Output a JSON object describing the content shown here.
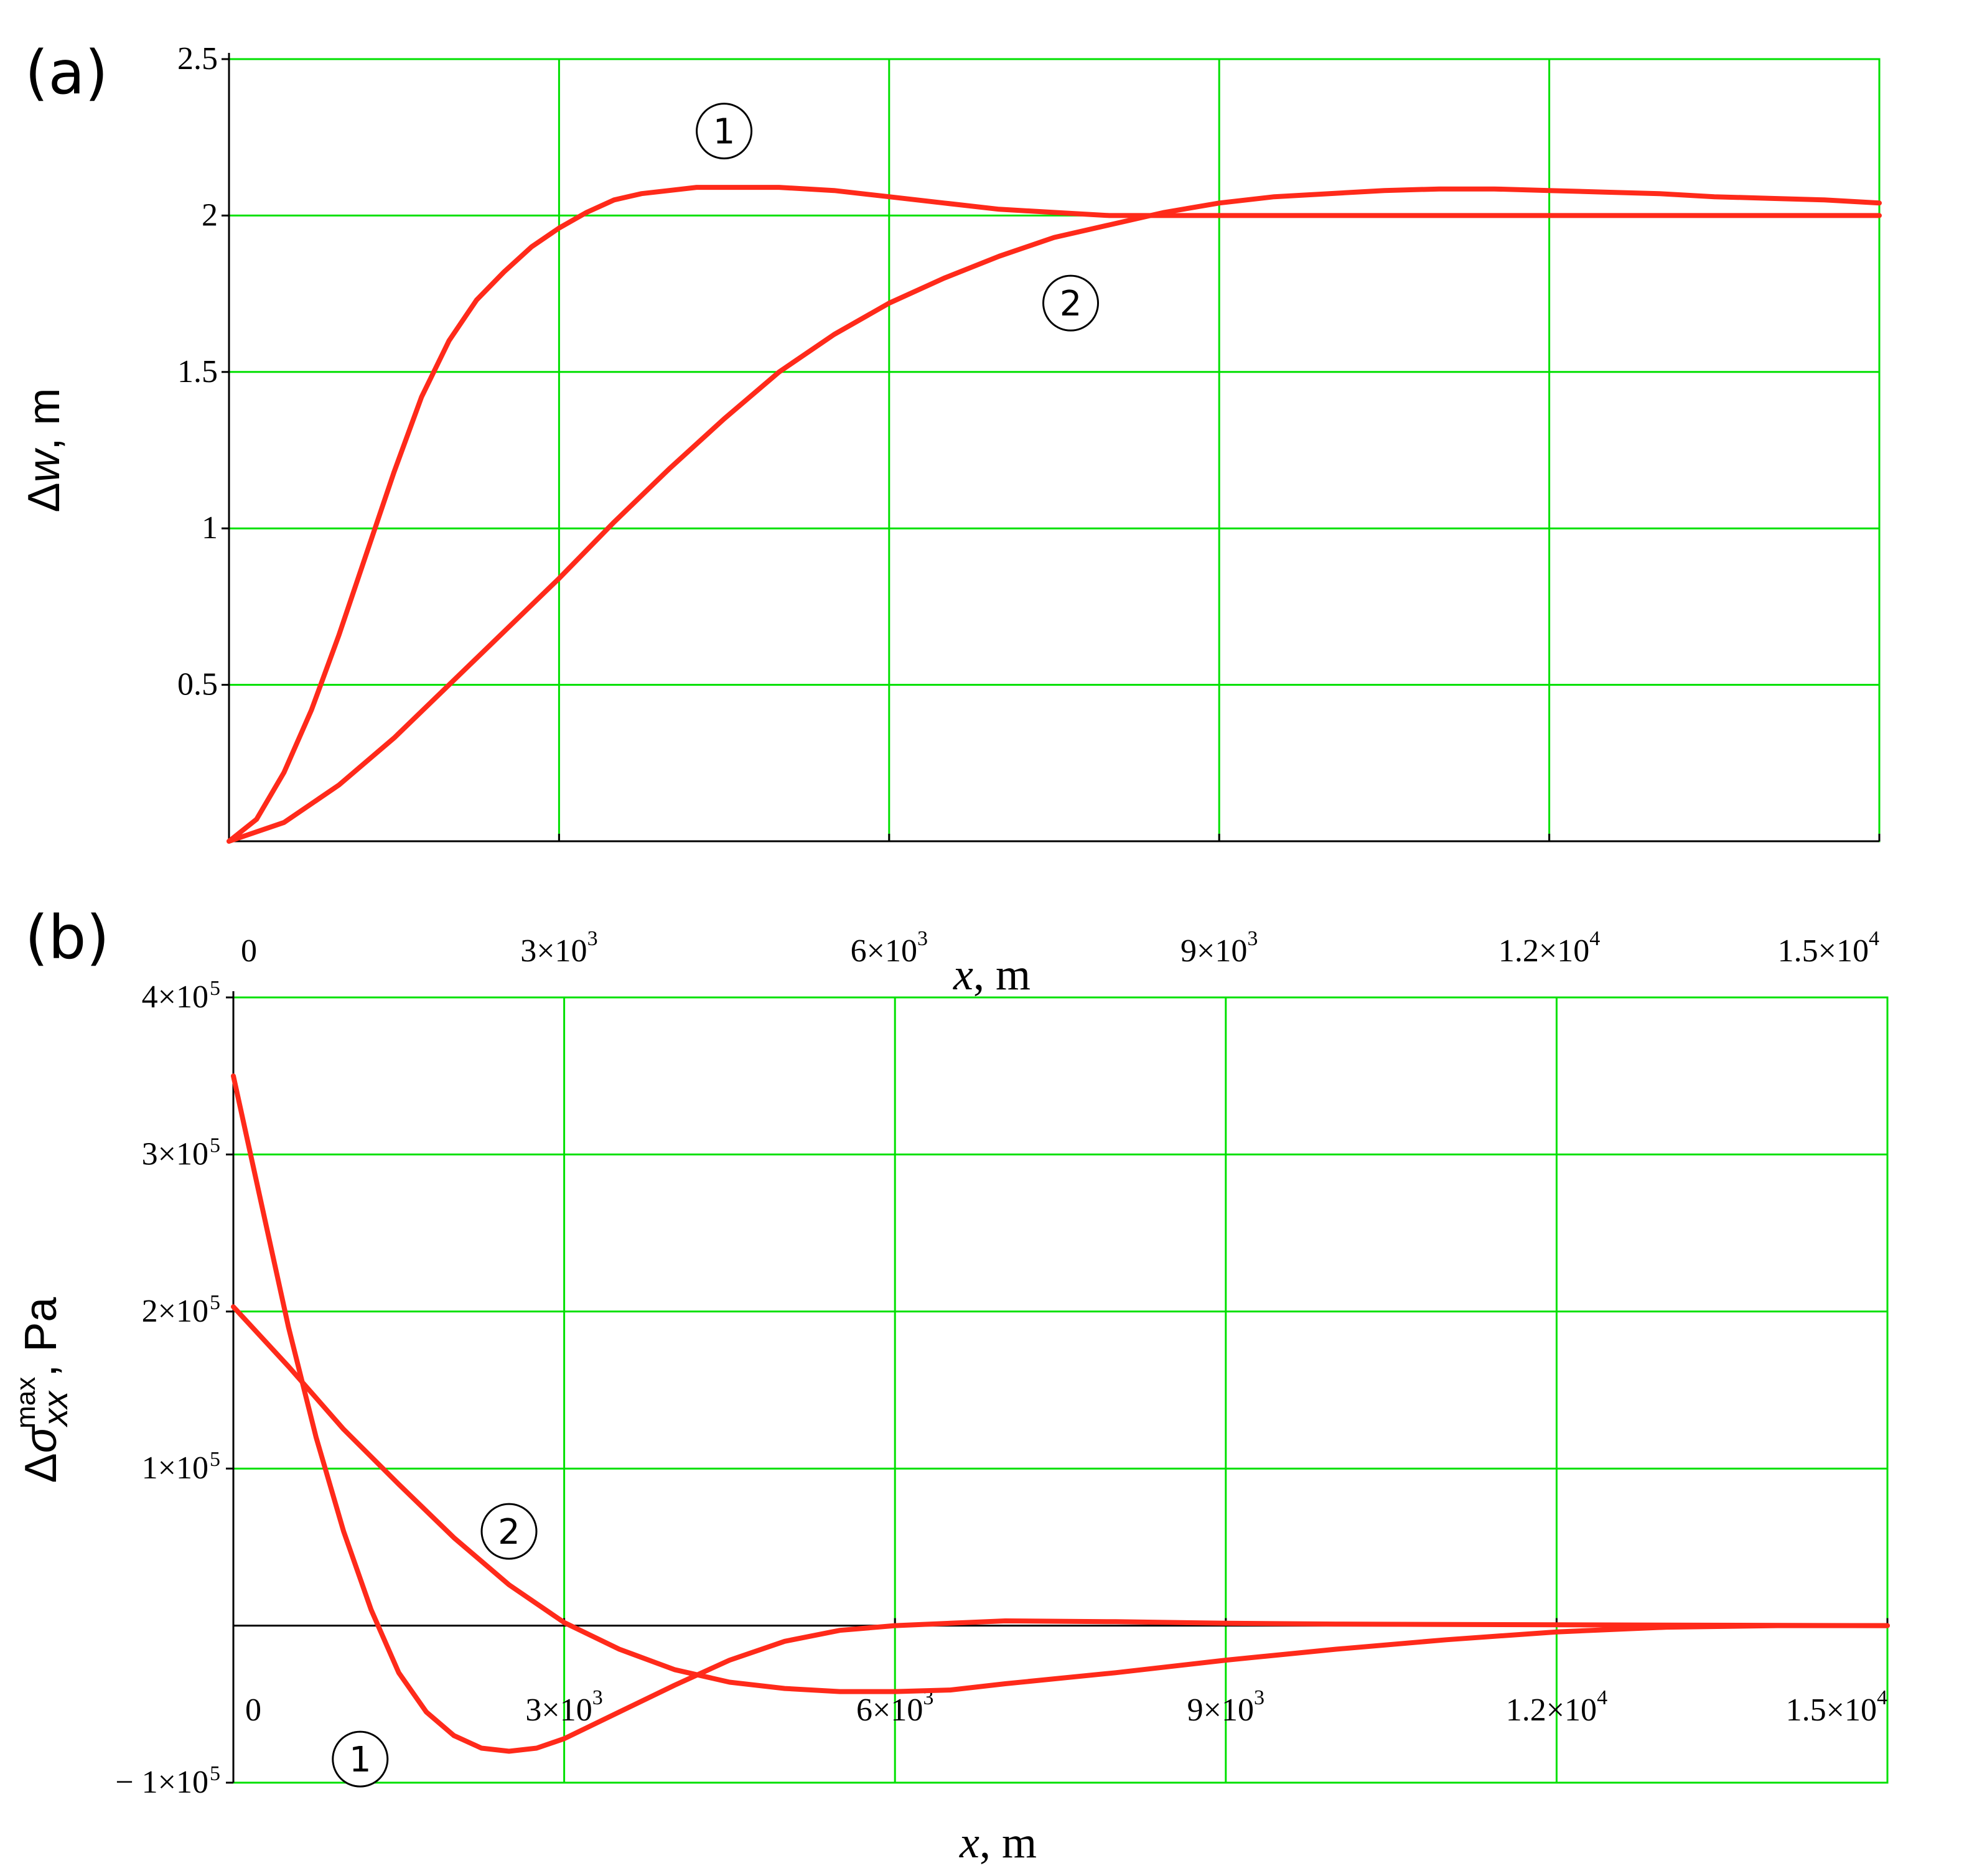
{
  "chart_data": [
    {
      "type": "line",
      "panel_label": "(a)",
      "ylabel": "Δw, m",
      "ylabel_parts": {
        "delta": "Δ",
        "var": "w",
        "unit": ", m"
      },
      "xlabel": "x, m",
      "xlabel_parts": {
        "var": "x",
        "unit": ", m"
      },
      "xlim": [
        0,
        15000
      ],
      "ylim": [
        0,
        2.5
      ],
      "grid": true,
      "grid_color": "#00e000",
      "line_color": "#ff2a1a",
      "x_ticks": [
        {
          "value": 0,
          "mant": "0",
          "exp": ""
        },
        {
          "value": 3000,
          "mant": "3×10",
          "exp": "3"
        },
        {
          "value": 6000,
          "mant": "6×10",
          "exp": "3"
        },
        {
          "value": 9000,
          "mant": "9×10",
          "exp": "3"
        },
        {
          "value": 12000,
          "mant": "1.2×10",
          "exp": "4"
        },
        {
          "value": 15000,
          "mant": "1.5×10",
          "exp": "4"
        }
      ],
      "y_ticks": [
        {
          "value": 0.5,
          "label": "0.5"
        },
        {
          "value": 1,
          "label": "1"
        },
        {
          "value": 1.5,
          "label": "1.5"
        },
        {
          "value": 2,
          "label": "2"
        },
        {
          "value": 2.5,
          "label": "2.5"
        }
      ],
      "series": [
        {
          "marker": "1",
          "x": [
            0,
            250,
            500,
            750,
            1000,
            1250,
            1500,
            1750,
            2000,
            2250,
            2500,
            2750,
            3000,
            3250,
            3500,
            3750,
            4000,
            4250,
            4500,
            4750,
            5000,
            5500,
            6000,
            6500,
            7000,
            7500,
            8000,
            8500,
            9000,
            10000,
            11000,
            12000,
            13000,
            14000,
            15000
          ],
          "y": [
            0,
            0.07,
            0.22,
            0.42,
            0.66,
            0.92,
            1.18,
            1.42,
            1.6,
            1.73,
            1.82,
            1.9,
            1.96,
            2.01,
            2.05,
            2.07,
            2.08,
            2.09,
            2.09,
            2.09,
            2.09,
            2.08,
            2.06,
            2.04,
            2.02,
            2.01,
            2.0,
            2.0,
            2.0,
            2.0,
            2.0,
            2.0,
            2.0,
            2.0,
            2.0
          ]
        },
        {
          "marker": "2",
          "x": [
            0,
            500,
            1000,
            1500,
            2000,
            2500,
            3000,
            3500,
            4000,
            4500,
            5000,
            5500,
            6000,
            6500,
            7000,
            7500,
            8000,
            8500,
            9000,
            9500,
            10000,
            10500,
            11000,
            11500,
            12000,
            12500,
            13000,
            13500,
            14000,
            14500,
            15000
          ],
          "y": [
            0,
            0.06,
            0.18,
            0.33,
            0.5,
            0.67,
            0.84,
            1.02,
            1.19,
            1.35,
            1.5,
            1.62,
            1.72,
            1.8,
            1.87,
            1.93,
            1.97,
            2.01,
            2.04,
            2.06,
            2.07,
            2.08,
            2.085,
            2.085,
            2.08,
            2.075,
            2.07,
            2.06,
            2.055,
            2.05,
            2.04
          ]
        }
      ],
      "markers": [
        {
          "label": "1",
          "x": 4500,
          "y": 2.27
        },
        {
          "label": "2",
          "x": 7650,
          "y": 1.72
        }
      ]
    },
    {
      "type": "line",
      "panel_label": "(b)",
      "ylabel": "Δσxx max, Pa",
      "ylabel_parts": {
        "delta": "Δ",
        "var": "σ",
        "sub": "xx",
        "sup": "max",
        "unit": ", Pa"
      },
      "xlabel": "x, m",
      "xlabel_parts": {
        "var": "x",
        "unit": ", m"
      },
      "xlim": [
        0,
        15000
      ],
      "ylim": [
        -100000,
        400000
      ],
      "grid": true,
      "grid_color": "#00e000",
      "line_color": "#ff2a1a",
      "zero_line": true,
      "x_ticks": [
        {
          "value": 0,
          "mant": "0",
          "exp": ""
        },
        {
          "value": 3000,
          "mant": "3×10",
          "exp": "3"
        },
        {
          "value": 6000,
          "mant": "6×10",
          "exp": "3"
        },
        {
          "value": 9000,
          "mant": "9×10",
          "exp": "3"
        },
        {
          "value": 12000,
          "mant": "1.2×10",
          "exp": "4"
        },
        {
          "value": 15000,
          "mant": "1.5×10",
          "exp": "4"
        }
      ],
      "y_ticks": [
        {
          "value": -100000,
          "mant": "− 1×10",
          "exp": "5"
        },
        {
          "value": 100000,
          "mant": "1×10",
          "exp": "5"
        },
        {
          "value": 200000,
          "mant": "2×10",
          "exp": "5"
        },
        {
          "value": 300000,
          "mant": "3×10",
          "exp": "5"
        },
        {
          "value": 400000,
          "mant": "4×10",
          "exp": "5"
        }
      ],
      "series": [
        {
          "marker": "1",
          "x": [
            0,
            250,
            500,
            750,
            1000,
            1250,
            1500,
            1750,
            2000,
            2250,
            2500,
            2750,
            3000,
            3500,
            4000,
            4500,
            5000,
            5500,
            6000,
            7000,
            8000,
            9000,
            10000,
            12000,
            15000
          ],
          "y": [
            350000,
            270000,
            190000,
            120000,
            60000,
            10000,
            -30000,
            -55000,
            -70000,
            -78000,
            -80000,
            -78000,
            -72000,
            -55000,
            -38000,
            -22000,
            -10000,
            -3000,
            0,
            3000,
            2500,
            1500,
            1000,
            500,
            0
          ]
        },
        {
          "marker": "2",
          "x": [
            0,
            500,
            1000,
            1500,
            2000,
            2500,
            3000,
            3500,
            4000,
            4500,
            5000,
            5500,
            6000,
            6500,
            7000,
            8000,
            9000,
            10000,
            11000,
            12000,
            13000,
            14000,
            15000
          ],
          "y": [
            203000,
            165000,
            125000,
            90000,
            56000,
            26000,
            2000,
            -15000,
            -28000,
            -36000,
            -40000,
            -42000,
            -42000,
            -41000,
            -37000,
            -30000,
            -22000,
            -15000,
            -9000,
            -4000,
            -1000,
            0,
            0
          ]
        }
      ],
      "markers": [
        {
          "label": "1",
          "x": 1150,
          "y": -85000
        },
        {
          "label": "2",
          "x": 2500,
          "y": 60000
        }
      ]
    }
  ]
}
